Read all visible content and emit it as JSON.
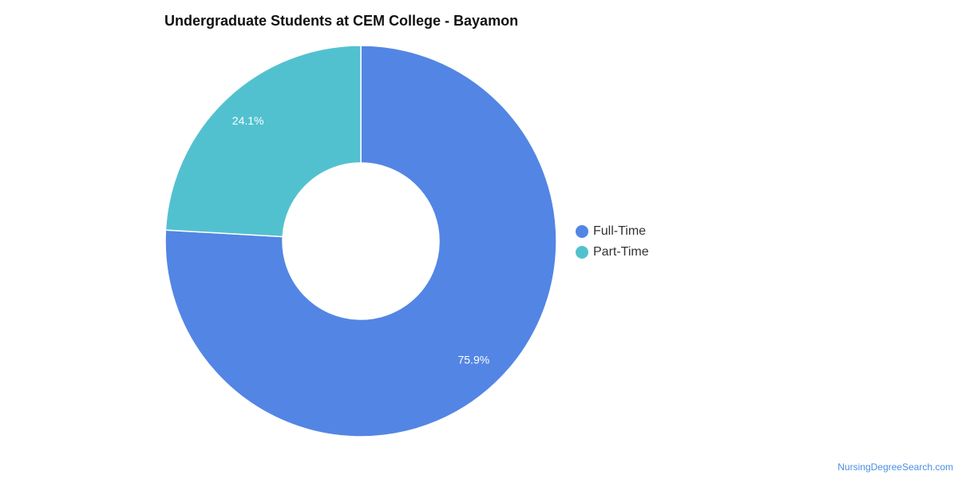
{
  "chart_data": {
    "type": "pie",
    "title": "Undergraduate Students at CEM College - Bayamon",
    "donut": true,
    "legend_position": "right",
    "series": [
      {
        "name": "Full-Time",
        "value": 75.9,
        "label": "75.9%",
        "color": "#5385e4"
      },
      {
        "name": "Part-Time",
        "value": 24.1,
        "label": "24.1%",
        "color": "#52c1cf"
      }
    ]
  },
  "footer": {
    "watermark": "NursingDegreeSearch.com"
  }
}
